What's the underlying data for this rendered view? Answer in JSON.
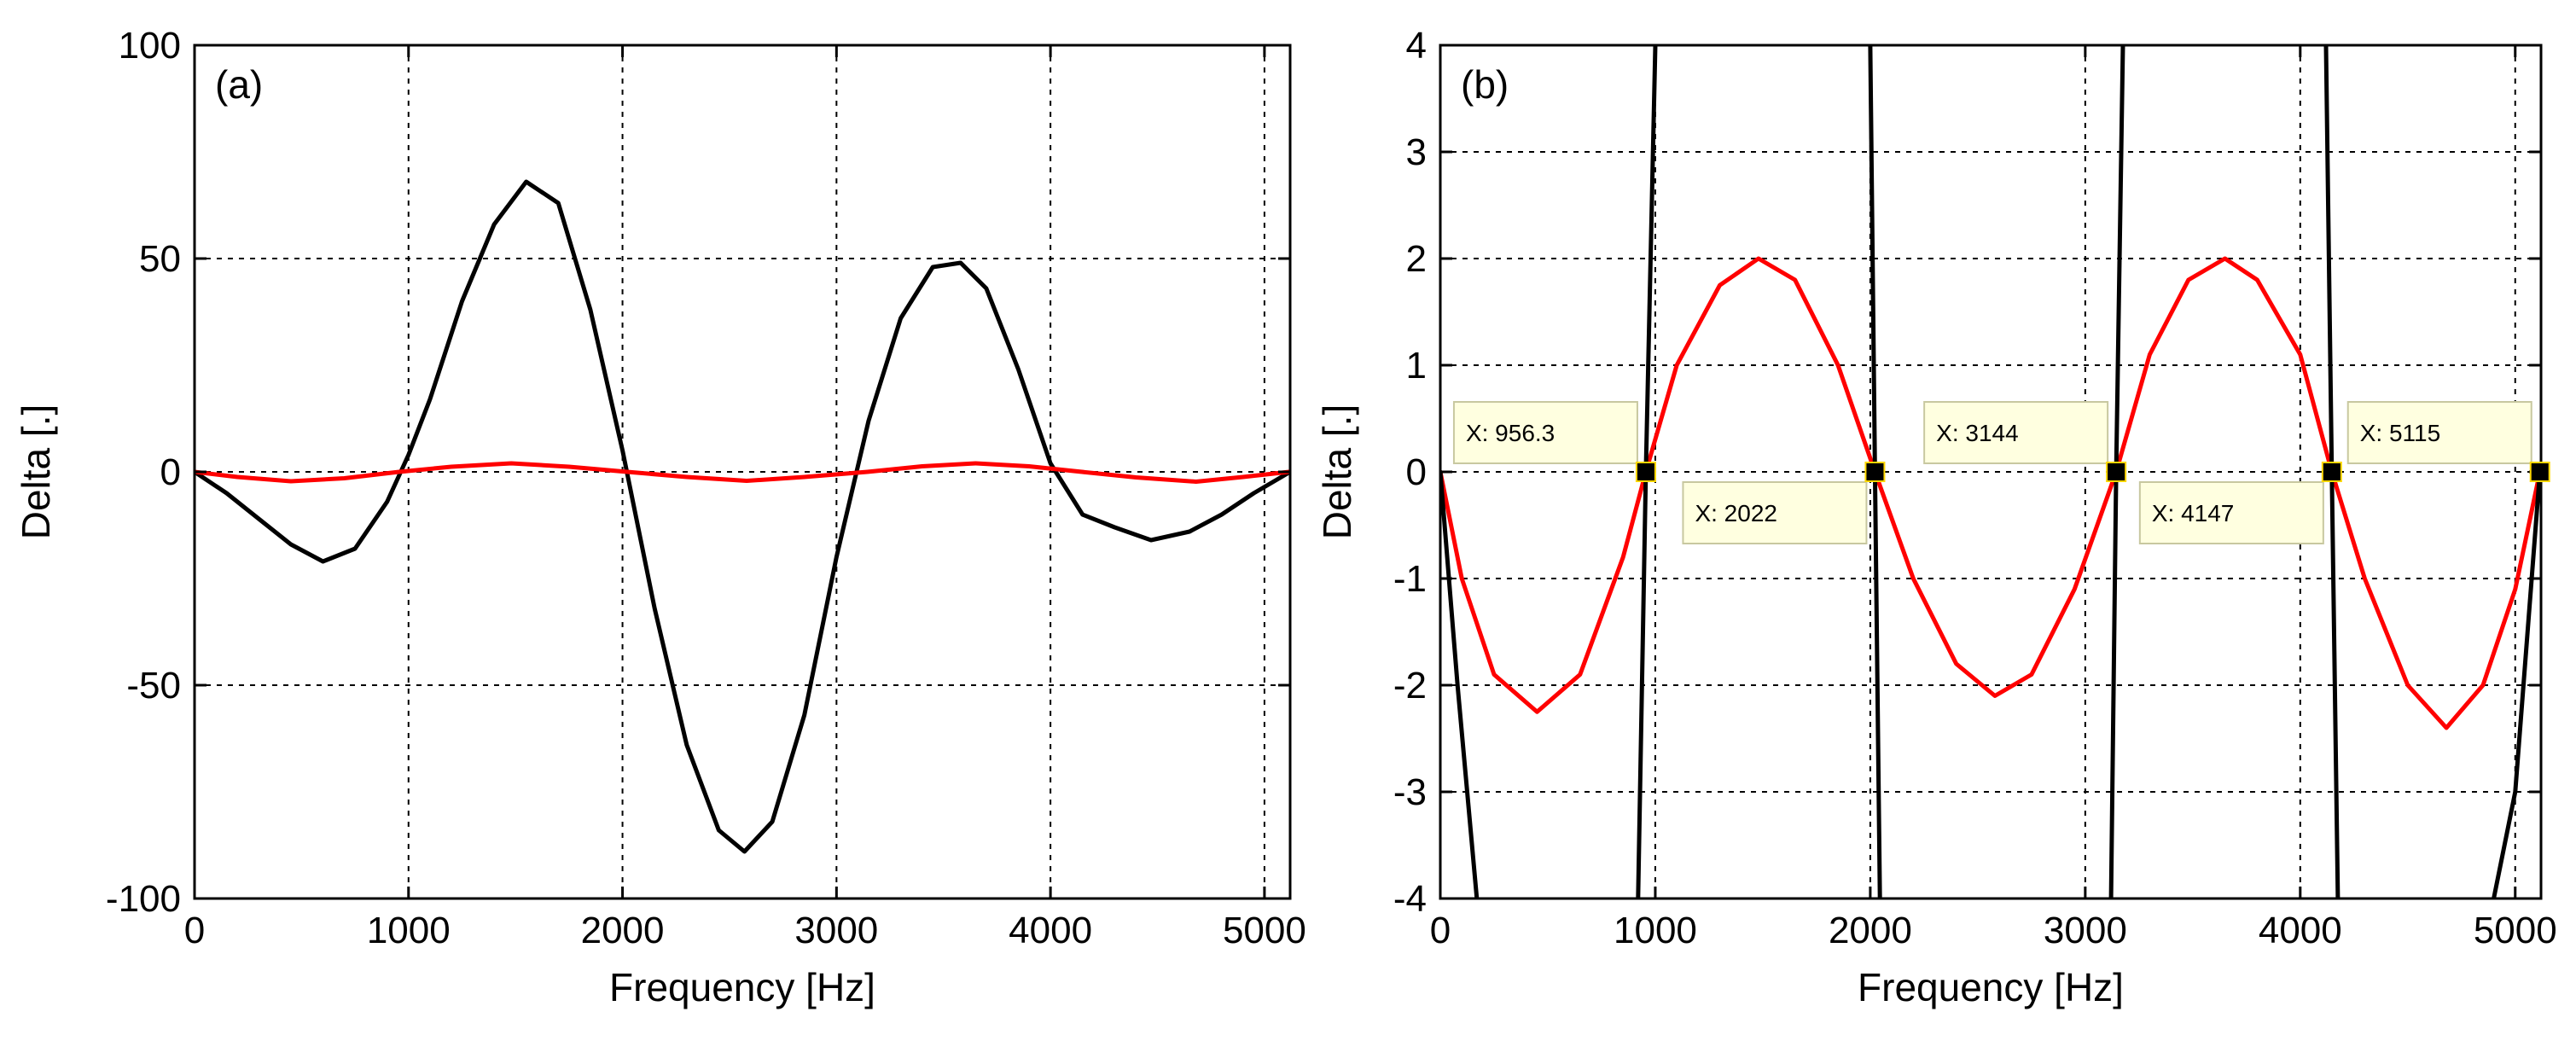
{
  "chart_data": [
    {
      "type": "line",
      "panel_label": "(a)",
      "xlabel": "Frequency [Hz]",
      "ylabel": "Delta [.]",
      "xlim": [
        0,
        5120
      ],
      "ylim": [
        -100,
        100
      ],
      "xticks": [
        0,
        1000,
        2000,
        3000,
        4000,
        5000
      ],
      "yticks": [
        -100,
        -50,
        0,
        50,
        100
      ],
      "grid": true,
      "series": [
        {
          "name": "black",
          "color": "#000000",
          "x": [
            0,
            150,
            300,
            450,
            600,
            750,
            900,
            1000,
            1100,
            1250,
            1400,
            1550,
            1700,
            1850,
            2000,
            2150,
            2300,
            2450,
            2570,
            2700,
            2850,
            3000,
            3150,
            3300,
            3450,
            3580,
            3700,
            3850,
            4000,
            4150,
            4300,
            4470,
            4650,
            4800,
            4950,
            5120
          ],
          "y": [
            0,
            -5,
            -11,
            -17,
            -21,
            -18,
            -7,
            4,
            17,
            40,
            58,
            68,
            63,
            38,
            5,
            -32,
            -64,
            -84,
            -89,
            -82,
            -57,
            -20,
            12,
            36,
            48,
            49,
            43,
            24,
            2,
            -10,
            -13,
            -16,
            -14,
            -10,
            -5,
            0
          ]
        },
        {
          "name": "red",
          "color": "#ff0000",
          "x": [
            0,
            200,
            450,
            700,
            956,
            1200,
            1480,
            1750,
            2022,
            2300,
            2580,
            2850,
            3144,
            3400,
            3650,
            3900,
            4147,
            4400,
            4680,
            4900,
            5115
          ],
          "y": [
            0,
            -1.2,
            -2.2,
            -1.5,
            0,
            1.2,
            2,
            1.2,
            0,
            -1.2,
            -2.1,
            -1.2,
            0,
            1.3,
            2,
            1.3,
            0,
            -1.3,
            -2.3,
            -1.2,
            0
          ]
        }
      ]
    },
    {
      "type": "line",
      "panel_label": "(b)",
      "xlabel": "Frequency [Hz]",
      "ylabel": "Delta [.]",
      "xlim": [
        0,
        5120
      ],
      "ylim": [
        -4,
        4
      ],
      "xticks": [
        0,
        1000,
        2000,
        3000,
        4000,
        5000
      ],
      "yticks": [
        -4,
        -3,
        -2,
        -1,
        0,
        1,
        2,
        3,
        4
      ],
      "grid": true,
      "series": [
        {
          "name": "red",
          "color": "#ff0000",
          "x": [
            0,
            100,
            250,
            450,
            650,
            850,
            956,
            1100,
            1300,
            1480,
            1650,
            1850,
            2022,
            2200,
            2400,
            2580,
            2750,
            2950,
            3144,
            3300,
            3480,
            3650,
            3800,
            4000,
            4147,
            4300,
            4500,
            4680,
            4850,
            5000,
            5115
          ],
          "y": [
            0,
            -1.0,
            -1.9,
            -2.25,
            -1.9,
            -0.8,
            0,
            1.0,
            1.75,
            2.0,
            1.8,
            1.0,
            0,
            -1.0,
            -1.8,
            -2.1,
            -1.9,
            -1.1,
            0,
            1.1,
            1.8,
            2.0,
            1.8,
            1.1,
            0,
            -1.0,
            -2.0,
            -2.4,
            -2.0,
            -1.1,
            0
          ]
        },
        {
          "name": "black",
          "color": "#000000",
          "segments": [
            {
              "x": [
                0,
                80,
                170
              ],
              "y": [
                0,
                -2.0,
                -4
              ]
            },
            {
              "x": [
                920,
                956,
                1000
              ],
              "y": [
                -4,
                0,
                4
              ]
            },
            {
              "x": [
                2000,
                2022,
                2045
              ],
              "y": [
                4,
                0,
                -4
              ]
            },
            {
              "x": [
                3120,
                3144,
                3175
              ],
              "y": [
                -4,
                0,
                4
              ]
            },
            {
              "x": [
                4120,
                4147,
                4175
              ],
              "y": [
                4,
                0,
                -4
              ]
            },
            {
              "x": [
                4900,
                5000,
                5115
              ],
              "y": [
                -4,
                -3.0,
                0
              ]
            }
          ]
        }
      ],
      "annotations": [
        {
          "x": 956.3,
          "y": 0,
          "text": "X: 956.3",
          "placement": "upper-left"
        },
        {
          "x": 2022,
          "y": 0,
          "text": "X: 2022",
          "placement": "lower-left"
        },
        {
          "x": 3144,
          "y": 0,
          "text": "X: 3144",
          "placement": "upper-left"
        },
        {
          "x": 4147,
          "y": 0,
          "text": "X: 4147",
          "placement": "lower-left"
        },
        {
          "x": 5115,
          "y": 0,
          "text": "X: 5115",
          "placement": "upper-left"
        }
      ]
    }
  ]
}
